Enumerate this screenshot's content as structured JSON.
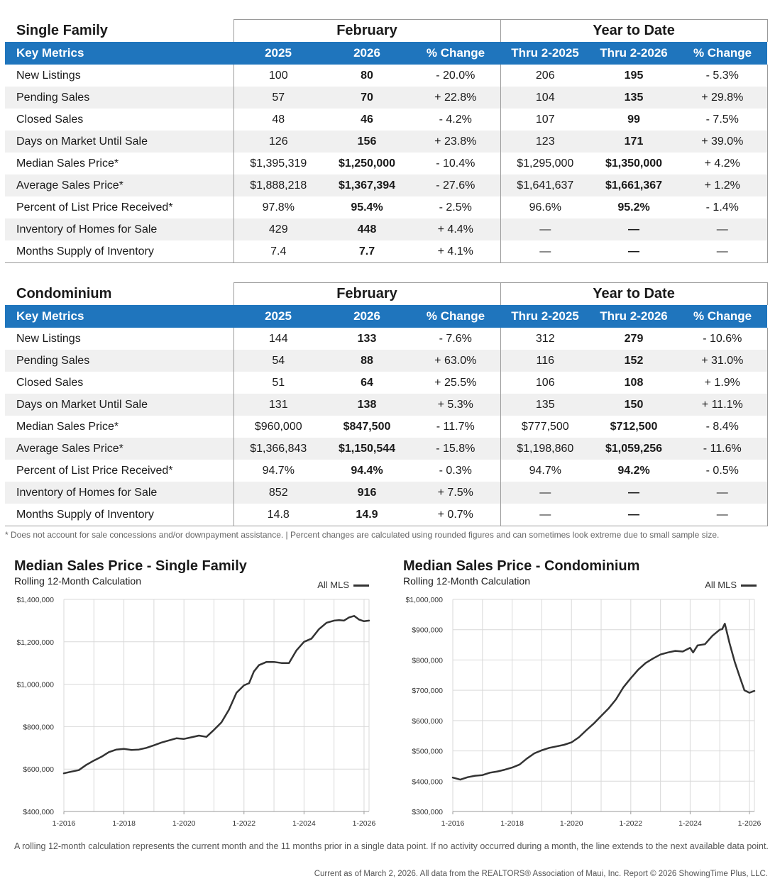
{
  "tables": [
    {
      "category": "Single Family",
      "group1": "February",
      "group2": "Year to Date",
      "headers": [
        "Key Metrics",
        "2025",
        "2026",
        "% Change",
        "Thru 2-2025",
        "Thru 2-2026",
        "% Change"
      ],
      "rows": [
        [
          "New Listings",
          "100",
          "80",
          "- 20.0%",
          "206",
          "195",
          "- 5.3%"
        ],
        [
          "Pending Sales",
          "57",
          "70",
          "+ 22.8%",
          "104",
          "135",
          "+ 29.8%"
        ],
        [
          "Closed Sales",
          "48",
          "46",
          "- 4.2%",
          "107",
          "99",
          "- 7.5%"
        ],
        [
          "Days on Market Until Sale",
          "126",
          "156",
          "+ 23.8%",
          "123",
          "171",
          "+ 39.0%"
        ],
        [
          "Median Sales Price*",
          "$1,395,319",
          "$1,250,000",
          "- 10.4%",
          "$1,295,000",
          "$1,350,000",
          "+ 4.2%"
        ],
        [
          "Average Sales Price*",
          "$1,888,218",
          "$1,367,394",
          "- 27.6%",
          "$1,641,637",
          "$1,661,367",
          "+ 1.2%"
        ],
        [
          "Percent of List Price Received*",
          "97.8%",
          "95.4%",
          "- 2.5%",
          "96.6%",
          "95.2%",
          "- 1.4%"
        ],
        [
          "Inventory of Homes for Sale",
          "429",
          "448",
          "+ 4.4%",
          "—",
          "—",
          "—"
        ],
        [
          "Months Supply of Inventory",
          "7.4",
          "7.7",
          "+ 4.1%",
          "—",
          "—",
          "—"
        ]
      ]
    },
    {
      "category": "Condominium",
      "group1": "February",
      "group2": "Year to Date",
      "headers": [
        "Key Metrics",
        "2025",
        "2026",
        "% Change",
        "Thru 2-2025",
        "Thru 2-2026",
        "% Change"
      ],
      "rows": [
        [
          "New Listings",
          "144",
          "133",
          "- 7.6%",
          "312",
          "279",
          "- 10.6%"
        ],
        [
          "Pending Sales",
          "54",
          "88",
          "+ 63.0%",
          "116",
          "152",
          "+ 31.0%"
        ],
        [
          "Closed Sales",
          "51",
          "64",
          "+ 25.5%",
          "106",
          "108",
          "+ 1.9%"
        ],
        [
          "Days on Market Until Sale",
          "131",
          "138",
          "+ 5.3%",
          "135",
          "150",
          "+ 11.1%"
        ],
        [
          "Median Sales Price*",
          "$960,000",
          "$847,500",
          "- 11.7%",
          "$777,500",
          "$712,500",
          "- 8.4%"
        ],
        [
          "Average Sales Price*",
          "$1,366,843",
          "$1,150,544",
          "- 15.8%",
          "$1,198,860",
          "$1,059,256",
          "- 11.6%"
        ],
        [
          "Percent of List Price Received*",
          "94.7%",
          "94.4%",
          "- 0.3%",
          "94.7%",
          "94.2%",
          "- 0.5%"
        ],
        [
          "Inventory of Homes for Sale",
          "852",
          "916",
          "+ 7.5%",
          "—",
          "—",
          "—"
        ],
        [
          "Months Supply of Inventory",
          "14.8",
          "14.9",
          "+ 0.7%",
          "—",
          "—",
          "—"
        ]
      ]
    }
  ],
  "footnote": "* Does not account for sale concessions and/or downpayment assistance. | Percent changes are calculated using rounded figures and can sometimes look extreme due to small sample size.",
  "rolling_note": "A rolling 12-month calculation represents the current month and the 11 months prior in a single data point. If no activity occurred during a month, the line extends to the next available data point.",
  "current_note": "Current as of March 2, 2026. All data from the REALTORS® Association of Maui, Inc. Report © 2026 ShowingTime Plus, LLC.",
  "colors": {
    "header_blue": "#1f75bd",
    "line": "#333333",
    "grid": "#d9d9d9"
  },
  "chart_data": [
    {
      "type": "line",
      "title": "Median Sales Price - Single Family",
      "subtitle": "Rolling 12-Month Calculation",
      "legend": "All MLS",
      "legend_position": "top-right",
      "grid": true,
      "xlim": [
        2016.0,
        2026.1667
      ],
      "ylim": [
        400000,
        1400000
      ],
      "yticks": [
        400000,
        600000,
        800000,
        1000000,
        1200000,
        1400000
      ],
      "ytick_labels": [
        "$400,000",
        "$600,000",
        "$800,000",
        "$1,000,000",
        "$1,200,000",
        "$1,400,000"
      ],
      "xticks": [
        2016,
        2018,
        2020,
        2022,
        2024,
        2026
      ],
      "xtick_labels": [
        "1-2016",
        "1-2018",
        "1-2020",
        "1-2022",
        "1-2024",
        "1-2026"
      ],
      "series": [
        {
          "name": "All MLS",
          "x": [
            2016.0,
            2016.25,
            2016.5,
            2016.75,
            2017.0,
            2017.25,
            2017.5,
            2017.75,
            2018.0,
            2018.25,
            2018.5,
            2018.75,
            2019.0,
            2019.25,
            2019.5,
            2019.75,
            2020.0,
            2020.25,
            2020.5,
            2020.75,
            2021.0,
            2021.25,
            2021.5,
            2021.75,
            2022.0,
            2022.17,
            2022.33,
            2022.5,
            2022.75,
            2023.0,
            2023.25,
            2023.5,
            2023.75,
            2024.0,
            2024.25,
            2024.5,
            2024.75,
            2025.0,
            2025.17,
            2025.33,
            2025.5,
            2025.67,
            2025.83,
            2026.0,
            2026.1667
          ],
          "y": [
            580000,
            588000,
            595000,
            620000,
            640000,
            658000,
            680000,
            692000,
            695000,
            690000,
            692000,
            700000,
            712000,
            725000,
            735000,
            745000,
            742000,
            750000,
            758000,
            752000,
            785000,
            820000,
            880000,
            960000,
            995000,
            1005000,
            1060000,
            1090000,
            1105000,
            1105000,
            1100000,
            1100000,
            1160000,
            1200000,
            1215000,
            1260000,
            1290000,
            1300000,
            1302000,
            1300000,
            1315000,
            1322000,
            1305000,
            1297000,
            1300000
          ]
        }
      ]
    },
    {
      "type": "line",
      "title": "Median Sales Price - Condominium",
      "subtitle": "Rolling 12-Month Calculation",
      "legend": "All MLS",
      "legend_position": "top-right",
      "grid": true,
      "xlim": [
        2016.0,
        2026.1667
      ],
      "ylim": [
        300000,
        1000000
      ],
      "yticks": [
        300000,
        400000,
        500000,
        600000,
        700000,
        800000,
        900000,
        1000000
      ],
      "ytick_labels": [
        "$300,000",
        "$400,000",
        "$500,000",
        "$600,000",
        "$700,000",
        "$800,000",
        "$900,000",
        "$1,000,000"
      ],
      "xticks": [
        2016,
        2018,
        2020,
        2022,
        2024,
        2026
      ],
      "xtick_labels": [
        "1-2016",
        "1-2018",
        "1-2020",
        "1-2022",
        "1-2024",
        "1-2026"
      ],
      "series": [
        {
          "name": "All MLS",
          "x": [
            2016.0,
            2016.25,
            2016.5,
            2016.75,
            2017.0,
            2017.25,
            2017.5,
            2017.75,
            2018.0,
            2018.25,
            2018.5,
            2018.75,
            2019.0,
            2019.25,
            2019.5,
            2019.75,
            2020.0,
            2020.25,
            2020.5,
            2020.75,
            2021.0,
            2021.25,
            2021.5,
            2021.75,
            2022.0,
            2022.25,
            2022.5,
            2022.75,
            2023.0,
            2023.25,
            2023.5,
            2023.75,
            2024.0,
            2024.1,
            2024.25,
            2024.5,
            2024.75,
            2025.0,
            2025.08,
            2025.17,
            2025.33,
            2025.5,
            2025.67,
            2025.83,
            2026.0,
            2026.1667
          ],
          "y": [
            412000,
            405000,
            413000,
            418000,
            420000,
            428000,
            432000,
            438000,
            445000,
            455000,
            475000,
            492000,
            502000,
            510000,
            515000,
            520000,
            528000,
            545000,
            568000,
            590000,
            615000,
            640000,
            670000,
            710000,
            740000,
            768000,
            790000,
            805000,
            818000,
            825000,
            830000,
            828000,
            840000,
            825000,
            848000,
            852000,
            880000,
            900000,
            902000,
            920000,
            855000,
            795000,
            745000,
            700000,
            692000,
            698000
          ]
        }
      ]
    }
  ]
}
